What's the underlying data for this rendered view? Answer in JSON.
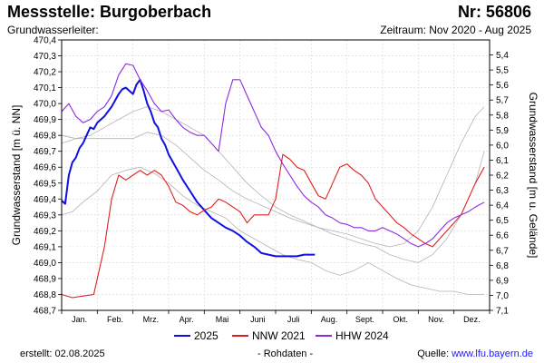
{
  "header": {
    "station": "Messstelle: Burgoberbach",
    "number": "Nr: 56806",
    "aquifer": "Grundwasserleiter:",
    "period": "Zeitraum: Nov 2020 - Aug 2025"
  },
  "footer": {
    "created_label": "erstellt:",
    "created_date": "02.08.2025",
    "raw_data": "- Rohdaten -",
    "source_label": "Quelle:",
    "source_link": "www.lfu.bayern.de"
  },
  "colors": {
    "y2025": "#1010e0",
    "nnw": "#e02020",
    "hhw": "#8a2be2",
    "other_years": "#b4b4b4",
    "grid": "#d6d6d6"
  },
  "chart_data": {
    "type": "line",
    "ylabel": "Grundwasserstand [m ü. NN]",
    "ylabel_right": "Grundwasserstand [m u. Gelände]",
    "ylim": [
      468.7,
      470.4
    ],
    "ylim_right": [
      5.3,
      7.1
    ],
    "y_ticks": [
      "468,7",
      "468,8",
      "468,9",
      "469,0",
      "469,1",
      "469,2",
      "469,3",
      "469,4",
      "469,5",
      "469,6",
      "469,7",
      "469,8",
      "469,9",
      "470,0",
      "470,1",
      "470,2",
      "470,3",
      "470,4"
    ],
    "y_ticks_right": [
      "5,4",
      "5,5",
      "5,6",
      "5,7",
      "5,8",
      "5,9",
      "6,0",
      "6,1",
      "6,2",
      "6,3",
      "6,4",
      "6,5",
      "6,6",
      "6,7",
      "6,8",
      "6,9",
      "7,0",
      "7,1"
    ],
    "months": [
      "Jan.",
      "Feb.",
      "Mrz.",
      "Apr.",
      "Mai",
      "Juni",
      "Juli",
      "Aug.",
      "Sept.",
      "Okt.",
      "Nov.",
      "Dez."
    ],
    "grid": true,
    "legend_position": "bottom",
    "series": [
      {
        "name": "2025",
        "color": "#1010e0",
        "x": [
          0,
          0.1,
          0.2,
          0.3,
          0.4,
          0.5,
          0.6,
          0.7,
          0.8,
          0.9,
          1.0,
          1.1,
          1.2,
          1.3,
          1.4,
          1.5,
          1.6,
          1.7,
          1.8,
          1.9,
          2.0,
          2.1,
          2.2,
          2.3,
          2.4,
          2.5,
          2.6,
          2.7,
          2.8,
          2.9,
          3.0,
          3.2,
          3.4,
          3.6,
          3.8,
          4.0,
          4.2,
          4.4,
          4.6,
          4.8,
          5.0,
          5.2,
          5.4,
          5.6,
          5.8,
          6.0,
          6.2,
          6.4,
          6.6,
          6.8,
          7.0,
          7.1
        ],
        "y": [
          469.39,
          469.37,
          469.55,
          469.63,
          469.66,
          469.72,
          469.75,
          469.8,
          469.85,
          469.84,
          469.88,
          469.9,
          469.92,
          469.95,
          469.98,
          470.02,
          470.06,
          470.09,
          470.1,
          470.08,
          470.06,
          470.12,
          470.15,
          470.08,
          470.0,
          469.95,
          469.88,
          469.85,
          469.78,
          469.74,
          469.68,
          469.6,
          469.52,
          469.45,
          469.38,
          469.33,
          469.28,
          469.25,
          469.22,
          469.2,
          469.17,
          469.13,
          469.1,
          469.06,
          469.05,
          469.04,
          469.04,
          469.04,
          469.04,
          469.05,
          469.05,
          469.05
        ]
      },
      {
        "name": "NNW 2021",
        "color": "#e02020",
        "x": [
          0,
          0.3,
          0.6,
          0.9,
          1.2,
          1.4,
          1.6,
          1.8,
          2.0,
          2.2,
          2.4,
          2.6,
          2.8,
          3.0,
          3.2,
          3.4,
          3.6,
          3.8,
          4.0,
          4.2,
          4.4,
          4.6,
          4.8,
          5.0,
          5.2,
          5.4,
          5.6,
          5.8,
          6.0,
          6.2,
          6.4,
          6.6,
          6.8,
          7.0,
          7.2,
          7.4,
          7.6,
          7.8,
          8.0,
          8.2,
          8.4,
          8.6,
          8.8,
          9.0,
          9.2,
          9.4,
          9.6,
          9.8,
          10.0,
          10.2,
          10.4,
          10.6,
          10.8,
          11.0,
          11.2,
          11.4,
          11.6,
          11.85
        ],
        "y": [
          468.8,
          468.78,
          468.79,
          468.8,
          469.1,
          469.4,
          469.55,
          469.52,
          469.55,
          469.58,
          469.55,
          469.58,
          469.55,
          469.48,
          469.38,
          469.36,
          469.32,
          469.3,
          469.33,
          469.35,
          469.4,
          469.38,
          469.35,
          469.32,
          469.25,
          469.3,
          469.3,
          469.3,
          469.4,
          469.68,
          469.65,
          469.6,
          469.58,
          469.5,
          469.42,
          469.4,
          469.5,
          469.6,
          469.62,
          469.58,
          469.55,
          469.5,
          469.4,
          469.35,
          469.3,
          469.25,
          469.22,
          469.18,
          469.15,
          469.12,
          469.1,
          469.15,
          469.2,
          469.25,
          469.3,
          469.4,
          469.5,
          469.6
        ]
      },
      {
        "name": "HHW 2024",
        "color": "#8a2be2",
        "x": [
          0,
          0.2,
          0.4,
          0.6,
          0.8,
          1.0,
          1.2,
          1.4,
          1.6,
          1.8,
          2.0,
          2.2,
          2.4,
          2.6,
          2.8,
          3.0,
          3.2,
          3.4,
          3.6,
          3.8,
          4.0,
          4.2,
          4.4,
          4.6,
          4.8,
          5.0,
          5.2,
          5.4,
          5.6,
          5.8,
          6.0,
          6.2,
          6.4,
          6.6,
          6.8,
          7.0,
          7.2,
          7.4,
          7.6,
          7.8,
          8.0,
          8.2,
          8.4,
          8.6,
          8.8,
          9.0,
          9.2,
          9.4,
          9.6,
          9.8,
          10.0,
          10.2,
          10.4,
          10.6,
          10.8,
          11.0,
          11.2,
          11.4,
          11.6,
          11.85
        ],
        "y": [
          469.95,
          470.0,
          469.92,
          469.88,
          469.9,
          469.95,
          469.98,
          470.05,
          470.18,
          470.25,
          470.24,
          470.15,
          470.08,
          470.0,
          469.95,
          469.96,
          469.9,
          469.85,
          469.82,
          469.8,
          469.8,
          469.75,
          469.7,
          470.0,
          470.15,
          470.15,
          470.05,
          469.95,
          469.85,
          469.8,
          469.7,
          469.62,
          469.55,
          469.48,
          469.42,
          469.38,
          469.35,
          469.3,
          469.28,
          469.25,
          469.24,
          469.22,
          469.22,
          469.2,
          469.2,
          469.22,
          469.2,
          469.18,
          469.15,
          469.12,
          469.1,
          469.12,
          469.15,
          469.2,
          469.25,
          469.28,
          469.3,
          469.32,
          469.35,
          469.38
        ]
      },
      {
        "name": "",
        "color": "#b4b4b4",
        "x": [
          0,
          0.3,
          0.6,
          1.0,
          1.4,
          1.8,
          2.2,
          2.6,
          3.0,
          3.4,
          3.8,
          4.2,
          4.6,
          5.0,
          5.4,
          5.8,
          6.2,
          6.6,
          7.0,
          7.4,
          7.8,
          8.2,
          8.6,
          9.0,
          9.4,
          9.8,
          10.2,
          10.6,
          11.0,
          11.4,
          11.85
        ],
        "y": [
          469.3,
          469.32,
          469.38,
          469.45,
          469.55,
          469.58,
          469.6,
          469.56,
          469.5,
          469.42,
          469.36,
          469.32,
          469.28,
          469.2,
          469.15,
          469.1,
          469.05,
          469.02,
          469.0,
          468.95,
          468.92,
          468.95,
          469.0,
          468.95,
          468.9,
          468.86,
          468.84,
          468.82,
          468.82,
          468.8,
          468.8
        ]
      },
      {
        "name": "",
        "color": "#b4b4b4",
        "x": [
          0,
          0.4,
          0.8,
          1.2,
          1.6,
          2.0,
          2.4,
          2.8,
          3.2,
          3.6,
          4.0,
          4.4,
          4.8,
          5.2,
          5.6,
          6.0,
          6.4,
          6.8,
          7.2,
          7.6,
          8.0,
          8.4,
          8.8,
          9.2,
          9.6,
          10.0,
          10.4,
          10.8,
          11.2,
          11.6,
          11.85
        ],
        "y": [
          469.8,
          469.78,
          469.78,
          469.78,
          469.78,
          469.78,
          469.82,
          469.8,
          469.74,
          469.66,
          469.58,
          469.52,
          469.45,
          469.4,
          469.36,
          469.32,
          469.28,
          469.25,
          469.22,
          469.18,
          469.15,
          469.12,
          469.1,
          469.05,
          469.02,
          469.0,
          469.05,
          469.15,
          469.3,
          469.5,
          469.7
        ]
      },
      {
        "name": "",
        "color": "#b4b4b4",
        "x": [
          0,
          0.4,
          0.8,
          1.2,
          1.6,
          2.0,
          2.4,
          2.8,
          3.2,
          3.6,
          4.0,
          4.4,
          4.8,
          5.2,
          5.6,
          6.0,
          6.4,
          6.8,
          7.2,
          7.6,
          8.0,
          8.4,
          8.8,
          9.2,
          9.6,
          10.0,
          10.4,
          10.8,
          11.2,
          11.6,
          11.85
        ],
        "y": [
          469.75,
          469.78,
          469.8,
          469.85,
          469.9,
          469.95,
          469.98,
          469.95,
          469.9,
          469.85,
          469.8,
          469.7,
          469.6,
          469.5,
          469.42,
          469.35,
          469.3,
          469.26,
          469.22,
          469.2,
          469.18,
          469.15,
          469.12,
          469.1,
          469.12,
          469.2,
          469.35,
          469.55,
          469.75,
          469.92,
          469.98
        ]
      }
    ]
  }
}
